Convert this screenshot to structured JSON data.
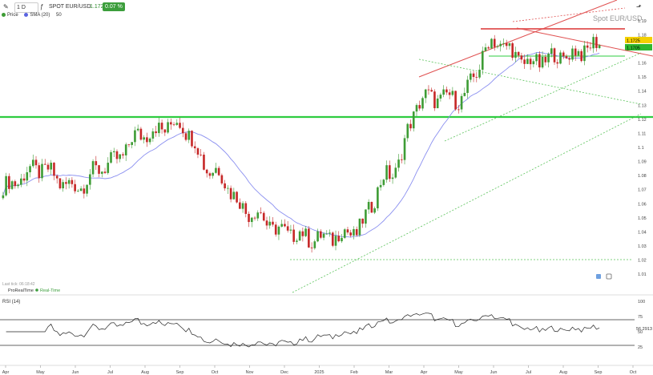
{
  "toolbar": {
    "timeframe": "1 D",
    "symbol": "SPOT EUR/USD",
    "last_price": "1.1725",
    "change": "0.07 %"
  },
  "legend": {
    "price": "Price",
    "sma": "SMA (20)",
    "sma_value": "50"
  },
  "watermark": "Spot EUR/USD",
  "footer": {
    "last_tick": "Last tick: 06:18:42",
    "provider": "ProRealTime",
    "realtime": "Real-Time"
  },
  "rsi_panel": {
    "label": "RSI (14)",
    "value_label": "56.2913",
    "ticks": [
      "100",
      "75",
      "50",
      "25"
    ]
  },
  "price_axis": {
    "ticks": [
      "1.19",
      "1.18",
      "1.17",
      "1.16",
      "1.15",
      "1.14",
      "1.13",
      "1.12",
      "1.11",
      "1.1",
      "1.09",
      "1.08",
      "1.07",
      "1.06",
      "1.05",
      "1.04",
      "1.03",
      "1.02",
      "1.01"
    ],
    "current_label": "1.1725",
    "sma_label": "1.1705"
  },
  "time_axis": {
    "labels": [
      "Apr",
      "May",
      "Jun",
      "Jul",
      "Aug",
      "Sep",
      "Oct",
      "Nov",
      "Dec",
      "2025",
      "Feb",
      "Mar",
      "Apr",
      "May",
      "Jun",
      "Jul",
      "Aug",
      "Sep",
      "Oct"
    ]
  },
  "colors": {
    "up": "#3e9c35",
    "down": "#c62828",
    "sma": "#8a8ff0",
    "support": "#2ecc40",
    "resistance": "#e53935"
  },
  "chart_data": {
    "type": "candlestick",
    "title": "Spot EUR/USD",
    "timeframe": "1 D",
    "x_range": [
      "2024-04",
      "2025-10"
    ],
    "ylim": [
      1.005,
      1.195
    ],
    "key_levels": [
      {
        "type": "support",
        "value": 1.12
      },
      {
        "type": "resistance",
        "value": 1.18
      },
      {
        "type": "support",
        "value": 1.16
      },
      {
        "type": "support",
        "value": 1.025
      }
    ],
    "closes_by_month": [
      {
        "x": "Apr 2024",
        "close": 1.072
      },
      {
        "x": "May 2024",
        "close": 1.085
      },
      {
        "x": "Jun 2024",
        "close": 1.072
      },
      {
        "x": "Jul 2024",
        "close": 1.088
      },
      {
        "x": "Aug 2024",
        "close": 1.11
      },
      {
        "x": "Sep 2024",
        "close": 1.117
      },
      {
        "x": "Oct 2024",
        "close": 1.083
      },
      {
        "x": "Nov 2024",
        "close": 1.055
      },
      {
        "x": "Dec 2024",
        "close": 1.04
      },
      {
        "x": "Jan 2025",
        "close": 1.035
      },
      {
        "x": "Feb 2025",
        "close": 1.04
      },
      {
        "x": "Mar 2025",
        "close": 1.08
      },
      {
        "x": "Apr 2025",
        "close": 1.135
      },
      {
        "x": "May 2025",
        "close": 1.135
      },
      {
        "x": "Jun 2025",
        "close": 1.175
      },
      {
        "x": "Jul 2025",
        "close": 1.16
      },
      {
        "x": "Aug 2025",
        "close": 1.165
      },
      {
        "x": "Sep 2025",
        "close": 1.1725
      }
    ],
    "rsi": {
      "period": 14,
      "last": 56.2913,
      "levels": [
        70,
        30
      ],
      "ylim": [
        0,
        100
      ]
    }
  }
}
